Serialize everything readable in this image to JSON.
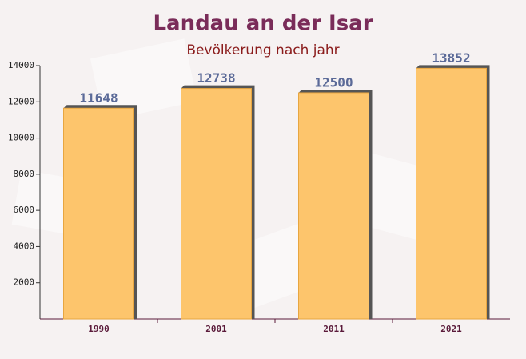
{
  "chart_data": {
    "type": "bar",
    "title": "Landau an der Isar",
    "subtitle": "Bevölkerung nach jahr",
    "categories": [
      "1990",
      "2001",
      "2011",
      "2021"
    ],
    "values": [
      11648,
      12738,
      12500,
      13852
    ],
    "color": "#fdc56c",
    "ylim": [
      0,
      14000
    ],
    "yticks": [
      2000,
      4000,
      6000,
      8000,
      10000,
      12000,
      14000
    ]
  }
}
